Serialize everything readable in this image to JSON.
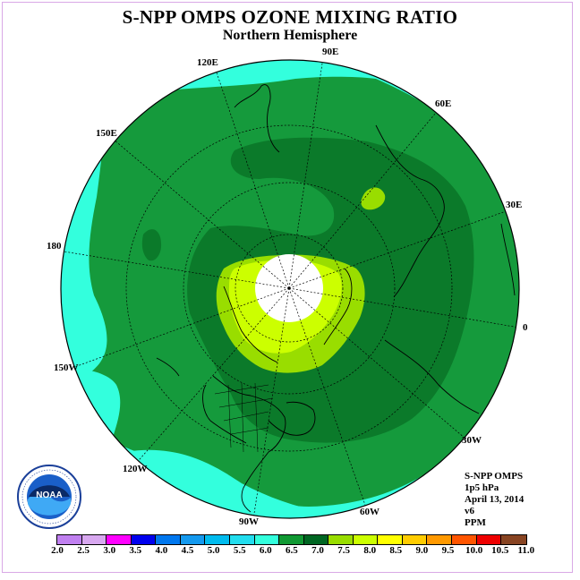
{
  "title": "S-NPP OMPS OZONE MIXING RATIO",
  "subtitle": "Northern Hemisphere",
  "longitude_labels": [
    "90E",
    "60E",
    "30E",
    "0",
    "30W",
    "60W",
    "90W",
    "120W",
    "150W",
    "180",
    "150E",
    "120E"
  ],
  "info": {
    "instrument": "S-NPP OMPS",
    "level": "1p5 hPa",
    "date": "April 13, 2014",
    "version": "v6",
    "units": "PPM"
  },
  "logo_text": "NOAA",
  "colorbar": {
    "ticks": [
      "2.0",
      "2.5",
      "3.0",
      "3.5",
      "4.0",
      "4.5",
      "5.0",
      "5.5",
      "6.0",
      "6.5",
      "7.0",
      "7.5",
      "8.0",
      "8.5",
      "9.0",
      "9.5",
      "10.0",
      "10.5",
      "11.0"
    ],
    "colors": [
      "#c080f0",
      "#d8a8f0",
      "#ff00ff",
      "#0000ee",
      "#0077ee",
      "#1499ee",
      "#00bbee",
      "#22ddee",
      "#33ffdd",
      "#119933",
      "#006622",
      "#99dd00",
      "#ccff00",
      "#ffff00",
      "#ffcc00",
      "#ff9900",
      "#ff5500",
      "#ee0000",
      "#884422"
    ]
  },
  "colors": {
    "ring": "#33ffdd",
    "mid": "#159a3c",
    "core": "#0b7a2a",
    "high": "#99dd00",
    "peak": "#ccff00",
    "pole_missing": "#ffffff"
  }
}
